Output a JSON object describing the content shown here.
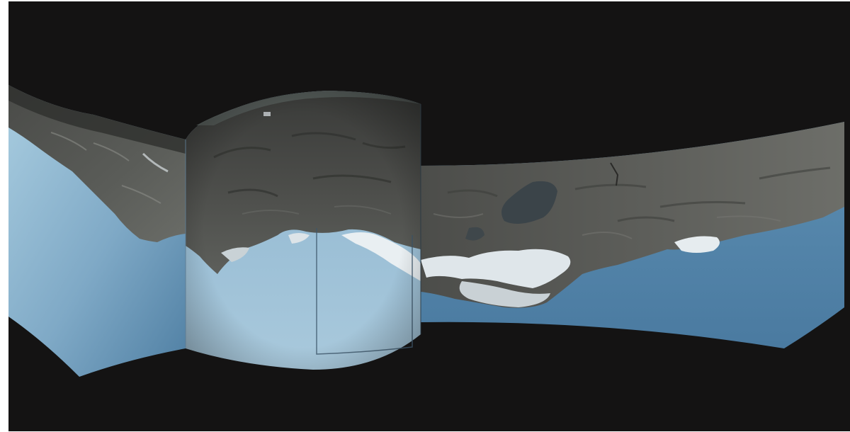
{
  "image": {
    "subject": "panorama-installation",
    "colors": {
      "background": "#141313",
      "sky_light": "#9ec4d9",
      "sky_mid": "#6f9fbf",
      "sky_dark": "#4a7a9e",
      "rock_dark": "#3c3c3a",
      "rock_mid": "#565754",
      "rock_light": "#6e706b",
      "snow": "#e8eef2"
    }
  }
}
